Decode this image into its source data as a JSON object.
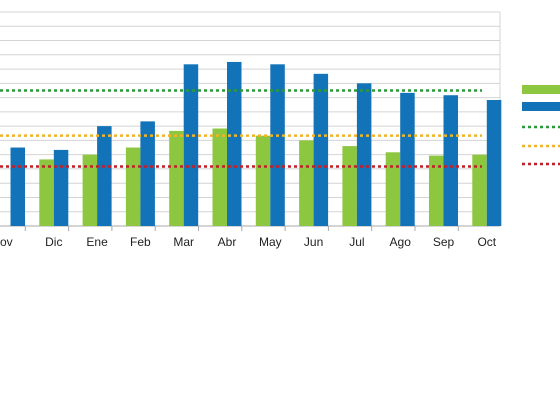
{
  "chart_data": {
    "type": "bar",
    "categories": [
      "ov",
      "Dic",
      "Ene",
      "Feb",
      "Mar",
      "Abr",
      "May",
      "Jun",
      "Jul",
      "Ago",
      "Sep",
      "Oct"
    ],
    "series": [
      {
        "values": [
          null,
          14,
          15,
          16.5,
          20,
          20.5,
          19,
          18,
          16.8,
          15.5,
          14.8,
          15
        ],
        "color": "#8dc63f"
      },
      {
        "values": [
          16.5,
          16,
          21,
          22,
          34,
          34.5,
          34,
          32,
          30,
          28,
          27.5,
          26.5
        ],
        "color": "#1373b8"
      }
    ],
    "reference_lines": [
      {
        "value": 28.5,
        "color": "#2c9a3a",
        "style": "dotted"
      },
      {
        "value": 19,
        "color": "#f0b429",
        "style": "dotted"
      },
      {
        "value": 12.5,
        "color": "#c0202a",
        "style": "dotted"
      }
    ],
    "ylim": [
      0,
      45
    ],
    "grid": true,
    "legend": "right"
  }
}
